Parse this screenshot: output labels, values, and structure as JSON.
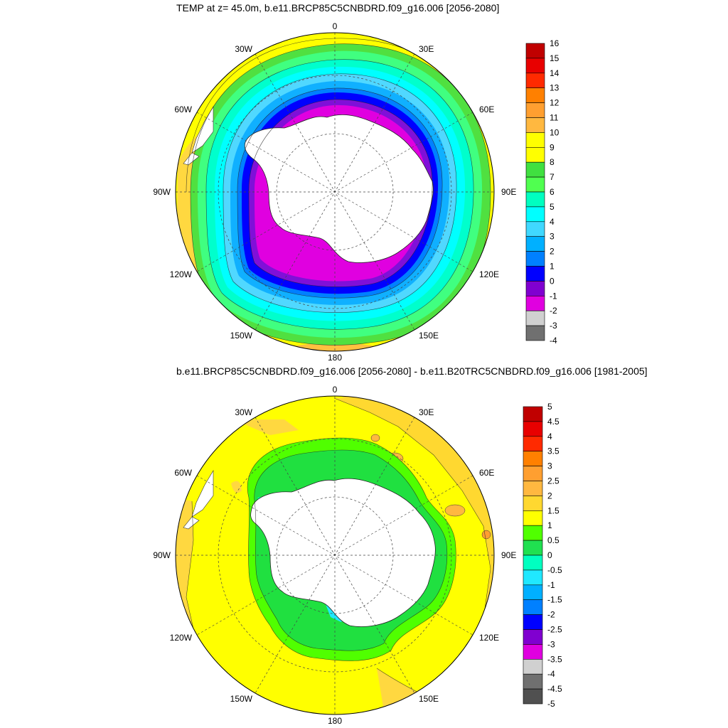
{
  "panel1": {
    "title": "TEMP at z=  45.0m, b.e11.BRCP85C5CNBDRD.f09_g16.006 [2056-2080]",
    "lon_labels": [
      "0",
      "30E",
      "60E",
      "90E",
      "120E",
      "150E",
      "180",
      "150W",
      "120W",
      "90W",
      "60W",
      "30W"
    ],
    "colorbar_labels": [
      "16",
      "15",
      "14",
      "13",
      "12",
      "11",
      "10",
      "9",
      "8",
      "7",
      "6",
      "5",
      "4",
      "3",
      "2",
      "1",
      "0",
      "-1",
      "-2",
      "-3",
      "-4"
    ],
    "colorbar_colors": [
      "#c00000",
      "#e80000",
      "#ff2a00",
      "#ff8000",
      "#ff9f30",
      "#ffb840",
      "#ffff00",
      "#ffff00",
      "#40e040",
      "#50ff50",
      "#00ffc0",
      "#00ffff",
      "#40d8ff",
      "#00b0ff",
      "#0080ff",
      "#0000ff",
      "#8000d0",
      "#e000e0",
      "#d0d0d0",
      "#707070"
    ]
  },
  "panel2": {
    "title": "b.e11.BRCP85C5CNBDRD.f09_g16.006 [2056-2080] - b.e11.B20TRC5CNBDRD.f09_g16.006 [1981-2005]",
    "lon_labels": [
      "0",
      "30E",
      "60E",
      "90E",
      "120E",
      "150E",
      "180",
      "150W",
      "120W",
      "90W",
      "60W",
      "30W"
    ],
    "colorbar_labels": [
      "5",
      "4.5",
      "4",
      "3.5",
      "3",
      "2.5",
      "2",
      "1.5",
      "1",
      "0.5",
      "0",
      "-0.5",
      "-1",
      "-1.5",
      "-2",
      "-2.5",
      "-3",
      "-3.5",
      "-4",
      "-4.5",
      "-5"
    ],
    "colorbar_colors": [
      "#c00000",
      "#e80000",
      "#ff2a00",
      "#ff8000",
      "#ff9f30",
      "#ffb840",
      "#ffd830",
      "#ffff00",
      "#50ff00",
      "#20e050",
      "#00ffc0",
      "#20e8ff",
      "#00b0ff",
      "#0080ff",
      "#0000ff",
      "#8000d0",
      "#e000e0",
      "#d0d0d0",
      "#707070",
      "#505050"
    ]
  }
}
